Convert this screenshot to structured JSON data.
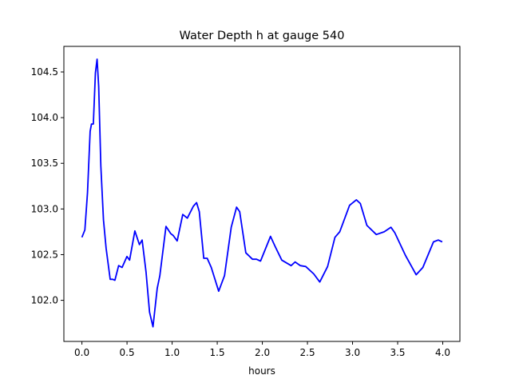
{
  "chart_data": {
    "type": "line",
    "title": "Water Depth h at gauge 540",
    "xlabel": "hours",
    "ylabel": "",
    "xlim": [
      -0.2,
      4.19
    ],
    "ylim": [
      101.55,
      104.78
    ],
    "xticks": [
      "0.0",
      "0.5",
      "1.0",
      "1.5",
      "2.0",
      "2.5",
      "3.0",
      "3.5",
      "4.0"
    ],
    "yticks": [
      "102.0",
      "102.5",
      "103.0",
      "103.5",
      "104.0",
      "104.5"
    ],
    "grid": false,
    "series": [
      {
        "name": "h",
        "color": "#0000ff",
        "x": [
          0,
          0.033,
          0.062,
          0.091,
          0.106,
          0.127,
          0.15,
          0.168,
          0.186,
          0.21,
          0.239,
          0.268,
          0.313,
          0.342,
          0.366,
          0.407,
          0.445,
          0.499,
          0.528,
          0.587,
          0.637,
          0.667,
          0.711,
          0.75,
          0.788,
          0.835,
          0.864,
          0.932,
          0.985,
          1.012,
          1.056,
          1.118,
          1.168,
          1.236,
          1.271,
          1.301,
          1.351,
          1.389,
          1.434,
          1.516,
          1.581,
          1.655,
          1.714,
          1.749,
          1.817,
          1.891,
          1.935,
          1.98,
          2.091,
          2.142,
          2.215,
          2.319,
          2.363,
          2.422,
          2.481,
          2.569,
          2.637,
          2.723,
          2.805,
          2.858,
          2.967,
          3.042,
          3.086,
          3.159,
          3.263,
          3.351,
          3.425,
          3.469,
          3.587,
          3.705,
          3.779,
          3.897,
          3.95,
          3.994
        ],
        "y": [
          102.69,
          102.77,
          103.18,
          103.85,
          103.93,
          103.93,
          104.49,
          104.64,
          104.34,
          103.47,
          102.88,
          102.57,
          102.23,
          102.23,
          102.22,
          102.38,
          102.36,
          102.48,
          102.44,
          102.76,
          102.61,
          102.66,
          102.31,
          101.87,
          101.71,
          102.13,
          102.27,
          102.81,
          102.73,
          102.71,
          102.65,
          102.94,
          102.9,
          103.03,
          103.07,
          102.97,
          102.46,
          102.46,
          102.36,
          102.1,
          102.27,
          102.8,
          103.02,
          102.97,
          102.52,
          102.45,
          102.45,
          102.43,
          102.7,
          102.59,
          102.44,
          102.38,
          102.42,
          102.38,
          102.37,
          102.29,
          102.2,
          102.37,
          102.69,
          102.75,
          103.04,
          103.1,
          103.06,
          102.82,
          102.72,
          102.75,
          102.8,
          102.74,
          102.49,
          102.28,
          102.36,
          102.64,
          102.66,
          102.64
        ]
      }
    ]
  }
}
